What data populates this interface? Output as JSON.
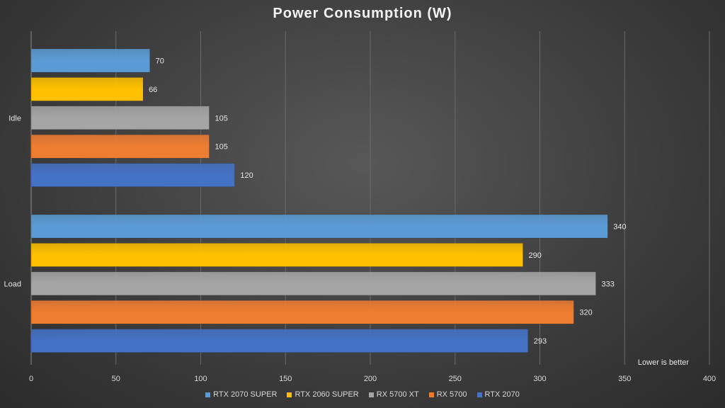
{
  "chart_data": {
    "type": "bar",
    "orientation": "horizontal",
    "title": "Power Consumption (W)",
    "categories": [
      "Idle",
      "Load"
    ],
    "series": [
      {
        "name": "RTX 2070 SUPER",
        "color": "#5b9bd5",
        "values": [
          70,
          340
        ]
      },
      {
        "name": "RTX 2060 SUPER",
        "color": "#ffc000",
        "values": [
          66,
          290
        ]
      },
      {
        "name": "RX 5700 XT",
        "color": "#a5a5a5",
        "values": [
          105,
          333
        ]
      },
      {
        "name": "RX 5700",
        "color": "#ed7d31",
        "values": [
          105,
          320
        ]
      },
      {
        "name": "RTX 2070",
        "color": "#4472c4",
        "values": [
          120,
          293
        ]
      }
    ],
    "xlim": [
      0,
      400
    ],
    "xticks": [
      0,
      50,
      100,
      150,
      200,
      250,
      300,
      350,
      400
    ],
    "grid": true,
    "legend_position": "bottom",
    "annotation": "Lower is better"
  }
}
